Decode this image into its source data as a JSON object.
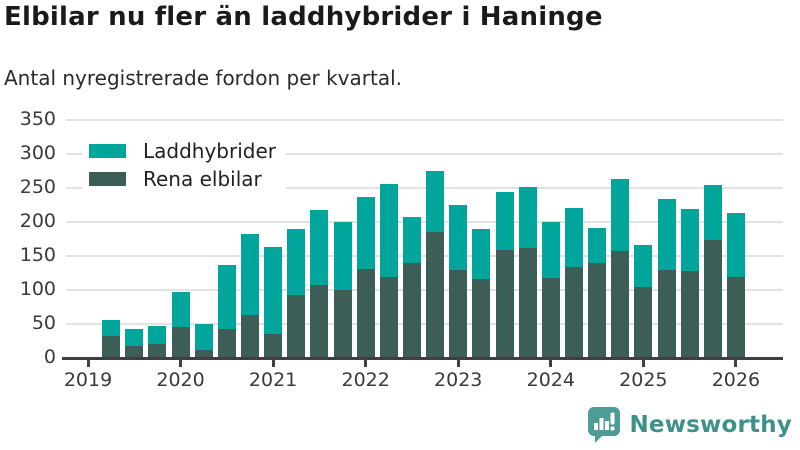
{
  "header": {
    "title": "Elbilar nu fler än laddhybrider i Haninge",
    "subtitle": "Antal nyregistrerade fordon per kvartal."
  },
  "chart_data": {
    "type": "bar",
    "stacked": true,
    "stack_bottom_series": "Rena elbilar",
    "title": "Elbilar nu fler än laddhybrider i Haninge",
    "subtitle": "Antal nyregistrerade fordon per kvartal.",
    "xlabel": "",
    "ylabel": "",
    "ylim": [
      0,
      350
    ],
    "y_ticks": [
      0,
      50,
      100,
      150,
      200,
      250,
      300,
      350
    ],
    "x_tick_labels": [
      "2019",
      "2020",
      "2021",
      "2022",
      "2023",
      "2024",
      "2025",
      "2026"
    ],
    "grid": true,
    "legend_position": "top-left-inside",
    "categories": [
      "2019Q2",
      "2019Q3",
      "2019Q4",
      "2020Q1",
      "2020Q2",
      "2020Q3",
      "2020Q4",
      "2021Q1",
      "2021Q2",
      "2021Q3",
      "2021Q4",
      "2022Q1",
      "2022Q2",
      "2022Q3",
      "2022Q4",
      "2023Q1",
      "2023Q2",
      "2023Q3",
      "2023Q4",
      "2024Q1",
      "2024Q2",
      "2024Q3",
      "2024Q4",
      "2025Q1",
      "2025Q2",
      "2025Q3",
      "2025Q4",
      "2026Q1"
    ],
    "series": [
      {
        "name": "Laddhybrider",
        "color": "#00a59c",
        "values": [
          23,
          26,
          26,
          52,
          38,
          95,
          120,
          127,
          98,
          110,
          100,
          106,
          137,
          68,
          89,
          96,
          73,
          85,
          89,
          82,
          86,
          52,
          106,
          61,
          104,
          91,
          81,
          94
        ]
      },
      {
        "name": "Rena elbilar",
        "color": "#3c5e57",
        "values": [
          33,
          17,
          21,
          45,
          12,
          42,
          63,
          36,
          92,
          108,
          100,
          131,
          119,
          140,
          186,
          129,
          116,
          159,
          162,
          118,
          134,
          139,
          157,
          105,
          130,
          128,
          174,
          119
        ]
      }
    ],
    "colors": {
      "gridline": "#e2e2e2",
      "axis": "#3f3f3f",
      "tick_label": "#3a3a3a"
    }
  },
  "footer": {
    "brand": "Newsworthy",
    "logo_color": "#4d9c95",
    "brand_text_color": "#3e918b",
    "logo_icon": "bar-chart-exclamation-bubble"
  }
}
